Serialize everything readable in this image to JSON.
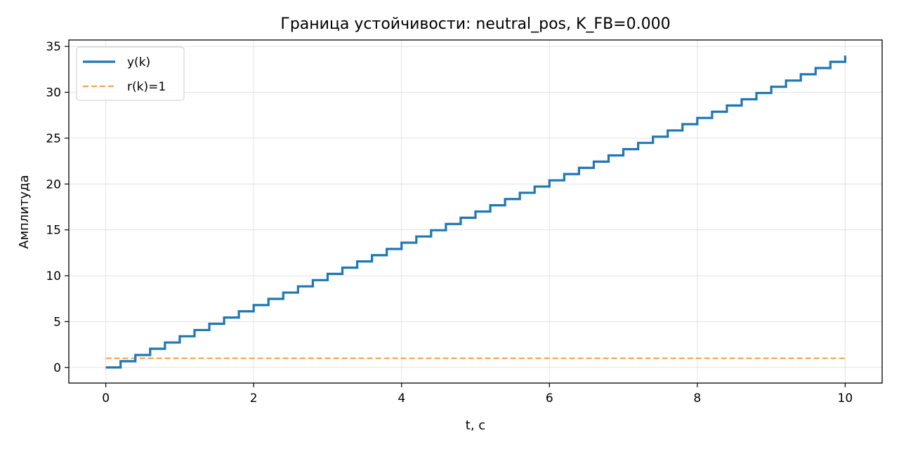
{
  "chart_data": {
    "type": "line",
    "title": "Граница устойчивости: neutral_pos, K_FB=0.000",
    "xlabel": "t, c",
    "ylabel": "Амплитуда",
    "xlim": [
      -0.5,
      10.5
    ],
    "ylim": [
      -1.7,
      35.7
    ],
    "xticks": [
      0,
      2,
      4,
      6,
      8,
      10
    ],
    "yticks": [
      0,
      5,
      10,
      15,
      20,
      25,
      30,
      35
    ],
    "grid": true,
    "legend_position": "top-left",
    "step": {
      "dt": 0.2,
      "increment": 0.68,
      "t_end": 10
    },
    "series": [
      {
        "name": "y(k)",
        "style": "step",
        "color": "#1f77b4",
        "start": 0,
        "end": 34.0
      },
      {
        "name": "r(k)=1",
        "style": "dashed",
        "color": "#ff7f0e",
        "x": [
          0,
          10
        ],
        "y": [
          1,
          1
        ]
      }
    ]
  }
}
